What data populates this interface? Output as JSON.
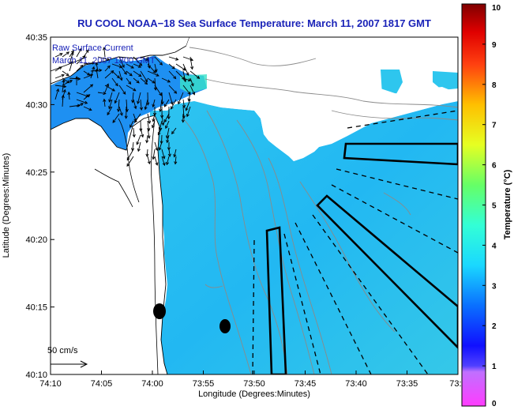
{
  "chart_data": {
    "type": "heatmap",
    "title": "RU COOL  NOAA−18  Sea Surface Temperature:  March 11, 2007 1817 GMT",
    "xlabel": "Longitude (Degrees:Minutes)",
    "ylabel": "Latitude (Degrees:Minutes)",
    "x_ticks": [
      "74:10",
      "74:05",
      "74:00",
      "73:55",
      "73:50",
      "73:45",
      "73:40",
      "73:35",
      "73:3"
    ],
    "y_ticks": [
      "40:35",
      "40:30",
      "40:25",
      "40:20",
      "40:15",
      "40:10"
    ],
    "colorbar": {
      "label": "Temperature (°C)",
      "range": [
        0,
        10
      ],
      "ticks": [
        "0",
        "1",
        "2",
        "3",
        "4",
        "5",
        "6",
        "7",
        "8",
        "9",
        "10"
      ]
    },
    "annotations": {
      "current_label": "Raw Surface Current",
      "current_time": "March 11, 2007 1800 GMT",
      "scale_label": "50 cm/s"
    },
    "dominant_temperature_c": 3.6,
    "grid": false
  }
}
